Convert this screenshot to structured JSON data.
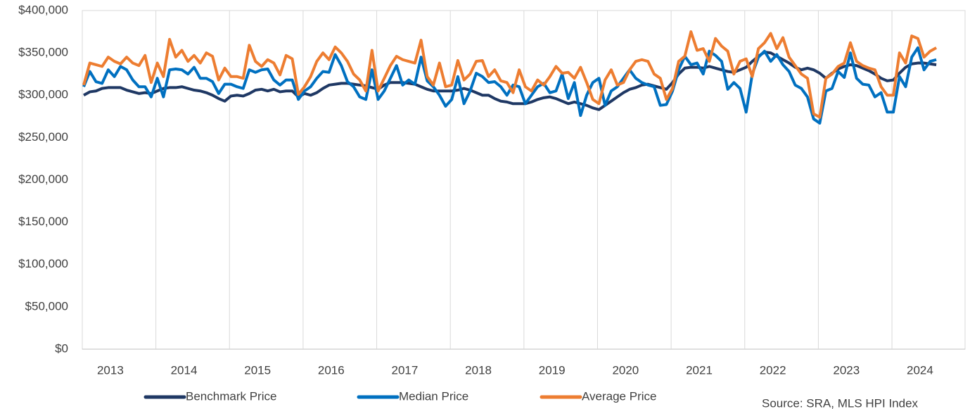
{
  "chart_data": {
    "type": "line",
    "categories": [
      null,
      null,
      null,
      null,
      "2013",
      null,
      null,
      null,
      null,
      null,
      null,
      null,
      null,
      null,
      null,
      null,
      "2014",
      null,
      null,
      null,
      null,
      null,
      null,
      null,
      null,
      null,
      null,
      null,
      "2015",
      null,
      null,
      null,
      null,
      null,
      null,
      null,
      null,
      null,
      null,
      null,
      "2016",
      null,
      null,
      null,
      null,
      null,
      null,
      null,
      null,
      null,
      null,
      null,
      "2017",
      null,
      null,
      null,
      null,
      null,
      null,
      null,
      null,
      null,
      null,
      null,
      "2018",
      null,
      null,
      null,
      null,
      null,
      null,
      null,
      null,
      null,
      null,
      null,
      "2019",
      null,
      null,
      null,
      null,
      null,
      null,
      null,
      null,
      null,
      null,
      null,
      "2020",
      null,
      null,
      null,
      null,
      null,
      null,
      null,
      null,
      null,
      null,
      null,
      "2021",
      null,
      null,
      null,
      null,
      null,
      null,
      null,
      null,
      null,
      null,
      null,
      "2022",
      null,
      null,
      null,
      null,
      null,
      null,
      null,
      null,
      null,
      null,
      null,
      "2023",
      null,
      null,
      null,
      null,
      null,
      null,
      null,
      null,
      null,
      null,
      null,
      "2024",
      null,
      null,
      null
    ],
    "series": [
      {
        "name": "Benchmark Price",
        "color": "#1f3864",
        "values": [
          300000,
          304000,
          305000,
          308000,
          309000,
          309000,
          309000,
          306000,
          304000,
          302000,
          303000,
          302000,
          305000,
          308000,
          309000,
          309000,
          310000,
          308000,
          306000,
          305000,
          303000,
          300000,
          296000,
          293000,
          299000,
          300000,
          299000,
          302000,
          306000,
          307000,
          305000,
          307000,
          304000,
          305000,
          305000,
          298000,
          302000,
          300000,
          303000,
          308000,
          312000,
          313000,
          314000,
          314000,
          313000,
          312000,
          311000,
          309000,
          307000,
          312000,
          315000,
          315000,
          315000,
          314000,
          313000,
          310000,
          307000,
          305000,
          305000,
          305000,
          305000,
          306000,
          308000,
          306000,
          303000,
          300000,
          300000,
          296000,
          293000,
          292000,
          290000,
          290000,
          290000,
          292000,
          295000,
          297000,
          298000,
          296000,
          293000,
          290000,
          292000,
          290000,
          288000,
          285000,
          283000,
          288000,
          293000,
          298000,
          303000,
          307000,
          309000,
          312000,
          313000,
          311000,
          309000,
          307000,
          315000,
          325000,
          332000,
          333000,
          333000,
          332000,
          334000,
          332000,
          330000,
          328000,
          327000,
          330000,
          333000,
          340000,
          346000,
          351000,
          350000,
          346000,
          342000,
          338000,
          333000,
          330000,
          332000,
          330000,
          326000,
          320000,
          326000,
          331000,
          334000,
          336000,
          335000,
          332000,
          329000,
          325000,
          320000,
          317000,
          318000,
          326000,
          333000,
          337000,
          338000,
          338000,
          337000,
          336000
        ]
      },
      {
        "name": "Median Price",
        "color": "#0070c0",
        "values": [
          310000,
          328000,
          316000,
          314000,
          330000,
          322000,
          334000,
          330000,
          318000,
          310000,
          310000,
          298000,
          320000,
          298000,
          330000,
          331000,
          330000,
          325000,
          333000,
          320000,
          320000,
          316000,
          302000,
          313000,
          313000,
          310000,
          308000,
          330000,
          327000,
          330000,
          331000,
          318000,
          312000,
          318000,
          318000,
          295000,
          305000,
          310000,
          320000,
          328000,
          327000,
          348000,
          335000,
          316000,
          310000,
          298000,
          295000,
          330000,
          295000,
          305000,
          320000,
          335000,
          312000,
          318000,
          313000,
          345000,
          317000,
          310000,
          300000,
          287000,
          295000,
          322000,
          290000,
          305000,
          326000,
          322000,
          315000,
          316000,
          310000,
          300000,
          312000,
          310000,
          290000,
          300000,
          310000,
          314000,
          303000,
          305000,
          325000,
          296000,
          315000,
          276000,
          300000,
          315000,
          320000,
          288000,
          305000,
          310000,
          320000,
          330000,
          320000,
          315000,
          312000,
          310000,
          288000,
          289000,
          305000,
          330000,
          346000,
          336000,
          338000,
          325000,
          352000,
          347000,
          340000,
          307000,
          315000,
          308000,
          280000,
          325000,
          345000,
          352000,
          340000,
          348000,
          336000,
          328000,
          312000,
          308000,
          298000,
          272000,
          267000,
          305000,
          308000,
          328000,
          321000,
          350000,
          320000,
          313000,
          312000,
          298000,
          303000,
          280000,
          280000,
          322000,
          310000,
          345000,
          356000,
          330000,
          340000,
          342000
        ]
      },
      {
        "name": "Average Price",
        "color": "#ed7d31",
        "values": [
          312000,
          338000,
          336000,
          334000,
          345000,
          340000,
          337000,
          345000,
          338000,
          335000,
          347000,
          315000,
          338000,
          322000,
          366000,
          345000,
          353000,
          340000,
          347000,
          338000,
          350000,
          346000,
          318000,
          332000,
          322000,
          322000,
          320000,
          359000,
          340000,
          334000,
          342000,
          338000,
          324000,
          347000,
          343000,
          301000,
          310000,
          322000,
          340000,
          350000,
          342000,
          357000,
          350000,
          340000,
          325000,
          318000,
          305000,
          353000,
          305000,
          320000,
          335000,
          346000,
          342000,
          340000,
          338000,
          365000,
          322000,
          312000,
          338000,
          310000,
          312000,
          341000,
          318000,
          325000,
          340000,
          341000,
          322000,
          330000,
          317000,
          315000,
          303000,
          330000,
          310000,
          305000,
          318000,
          312000,
          322000,
          334000,
          326000,
          327000,
          320000,
          333000,
          315000,
          295000,
          290000,
          318000,
          330000,
          312000,
          315000,
          330000,
          340000,
          342000,
          340000,
          325000,
          320000,
          295000,
          308000,
          340000,
          346000,
          375000,
          353000,
          355000,
          340000,
          367000,
          358000,
          352000,
          325000,
          340000,
          343000,
          322000,
          355000,
          362000,
          373000,
          355000,
          368000,
          345000,
          335000,
          325000,
          320000,
          278000,
          274000,
          320000,
          325000,
          334000,
          338000,
          362000,
          340000,
          335000,
          332000,
          330000,
          310000,
          300000,
          300000,
          350000,
          338000,
          370000,
          367000,
          345000,
          352000,
          356000
        ]
      }
    ],
    "ylim": [
      0,
      400000
    ],
    "yticks": [
      {
        "value": 0,
        "label": "$0"
      },
      {
        "value": 50000,
        "label": "$50,000"
      },
      {
        "value": 100000,
        "label": "$100,000"
      },
      {
        "value": 150000,
        "label": "$150,000"
      },
      {
        "value": 200000,
        "label": "$200,000"
      },
      {
        "value": 250000,
        "label": "$250,000"
      },
      {
        "value": 300000,
        "label": "$300,000"
      },
      {
        "value": 350000,
        "label": "$350,000"
      },
      {
        "value": 400000,
        "label": "$400,000"
      }
    ],
    "legend": "bottom",
    "source": "Source: SRA, MLS HPI Index"
  }
}
